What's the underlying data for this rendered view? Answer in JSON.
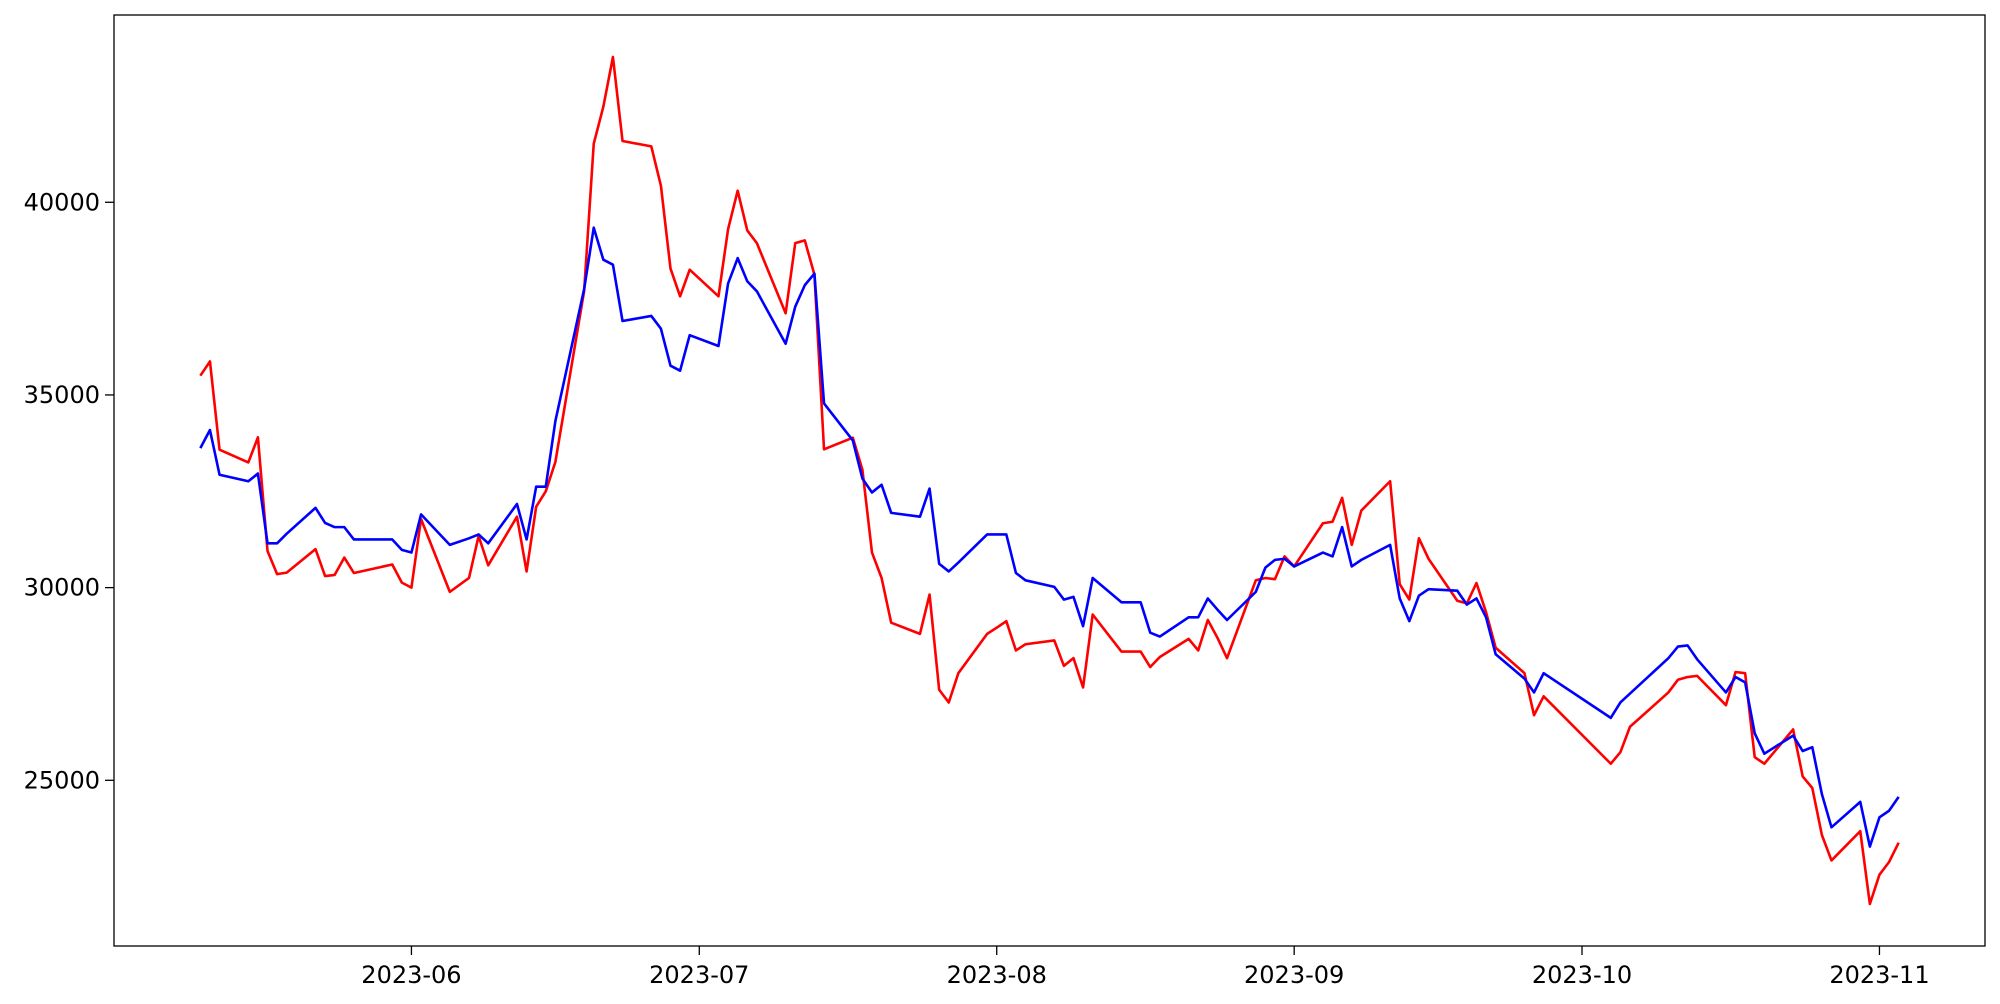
{
  "chart_data": {
    "type": "line",
    "x": [
      "2023-05-10",
      "2023-05-11",
      "2023-05-12",
      "2023-05-15",
      "2023-05-16",
      "2023-05-17",
      "2023-05-18",
      "2023-05-19",
      "2023-05-22",
      "2023-05-23",
      "2023-05-24",
      "2023-05-25",
      "2023-05-26",
      "2023-05-30",
      "2023-05-31",
      "2023-06-01",
      "2023-06-02",
      "2023-06-05",
      "2023-06-07",
      "2023-06-08",
      "2023-06-09",
      "2023-06-12",
      "2023-06-13",
      "2023-06-14",
      "2023-06-15",
      "2023-06-16",
      "2023-06-19",
      "2023-06-20",
      "2023-06-21",
      "2023-06-22",
      "2023-06-23",
      "2023-06-26",
      "2023-06-27",
      "2023-06-28",
      "2023-06-29",
      "2023-06-30",
      "2023-07-03",
      "2023-07-04",
      "2023-07-05",
      "2023-07-06",
      "2023-07-07",
      "2023-07-10",
      "2023-07-11",
      "2023-07-12",
      "2023-07-13",
      "2023-07-14",
      "2023-07-17",
      "2023-07-18",
      "2023-07-19",
      "2023-07-20",
      "2023-07-21",
      "2023-07-24",
      "2023-07-25",
      "2023-07-26",
      "2023-07-27",
      "2023-07-28",
      "2023-07-31",
      "2023-08-01",
      "2023-08-02",
      "2023-08-03",
      "2023-08-04",
      "2023-08-07",
      "2023-08-08",
      "2023-08-09",
      "2023-08-10",
      "2023-08-11",
      "2023-08-14",
      "2023-08-16",
      "2023-08-17",
      "2023-08-18",
      "2023-08-21",
      "2023-08-22",
      "2023-08-23",
      "2023-08-24",
      "2023-08-25",
      "2023-08-28",
      "2023-08-29",
      "2023-08-30",
      "2023-08-31",
      "2023-09-01",
      "2023-09-04",
      "2023-09-05",
      "2023-09-06",
      "2023-09-07",
      "2023-09-08",
      "2023-09-11",
      "2023-09-12",
      "2023-09-13",
      "2023-09-14",
      "2023-09-15",
      "2023-09-18",
      "2023-09-19",
      "2023-09-20",
      "2023-09-21",
      "2023-09-22",
      "2023-09-25",
      "2023-09-26",
      "2023-09-27",
      "2023-10-04",
      "2023-10-05",
      "2023-10-06",
      "2023-10-10",
      "2023-10-11",
      "2023-10-12",
      "2023-10-13",
      "2023-10-16",
      "2023-10-17",
      "2023-10-18",
      "2023-10-19",
      "2023-10-20",
      "2023-10-23",
      "2023-10-24",
      "2023-10-25",
      "2023-10-26",
      "2023-10-27",
      "2023-10-30",
      "2023-10-31",
      "2023-11-01",
      "2023-11-02",
      "2023-11-03"
    ],
    "series": [
      {
        "color": "#ff0000",
        "values": [
          35500,
          35870,
          33580,
          33250,
          33900,
          30950,
          30350,
          30390,
          31000,
          30300,
          30330,
          30780,
          30380,
          30600,
          30130,
          30000,
          31780,
          29890,
          30250,
          31340,
          30580,
          31840,
          30420,
          32100,
          32500,
          33260,
          37700,
          41520,
          42480,
          43770,
          41590,
          41450,
          40430,
          38280,
          37560,
          38250,
          37560,
          39300,
          40300,
          39270,
          38940,
          37120,
          38940,
          39010,
          38120,
          33590,
          33890,
          33060,
          30910,
          30250,
          29090,
          28800,
          29820,
          27350,
          27020,
          27780,
          28800,
          28960,
          29130,
          28370,
          28530,
          28630,
          27970,
          28170,
          27410,
          29300,
          28340,
          28340,
          27940,
          28200,
          28670,
          28370,
          29160,
          28700,
          28170,
          30190,
          30250,
          30220,
          30810,
          30550,
          31670,
          31710,
          32330,
          31110,
          32000,
          32760,
          30090,
          29690,
          31280,
          30750,
          29660,
          29590,
          30120,
          29360,
          28440,
          27780,
          26690,
          27180,
          25430,
          25730,
          26390,
          27280,
          27610,
          27680,
          27710,
          26950,
          27810,
          27780,
          25600,
          25430,
          26320,
          25100,
          24800,
          23580,
          22920,
          23680,
          21790,
          22550,
          22880,
          23380
        ]
      },
      {
        "color": "#0000ff",
        "values": [
          33620,
          34090,
          32930,
          32760,
          32960,
          31150,
          31150,
          31400,
          32070,
          31680,
          31570,
          31570,
          31250,
          31250,
          30980,
          30910,
          31900,
          31110,
          31280,
          31380,
          31150,
          32170,
          31250,
          32620,
          32620,
          34320,
          37750,
          39340,
          38510,
          38380,
          36920,
          37050,
          36720,
          35760,
          35630,
          36550,
          36270,
          37890,
          38550,
          37950,
          37690,
          36330,
          37290,
          37850,
          38150,
          34780,
          33820,
          32830,
          32470,
          32670,
          31940,
          31840,
          32570,
          30620,
          30420,
          30650,
          31380,
          31380,
          31380,
          30380,
          30190,
          30020,
          29690,
          29760,
          29000,
          30250,
          29620,
          29620,
          28830,
          28730,
          29230,
          29230,
          29720,
          29430,
          29160,
          29890,
          30520,
          30720,
          30750,
          30550,
          30910,
          30810,
          31570,
          30550,
          30720,
          31110,
          29720,
          29130,
          29790,
          29960,
          29920,
          29560,
          29720,
          29230,
          28270,
          27640,
          27280,
          27780,
          26620,
          27020,
          27250,
          28170,
          28470,
          28500,
          28140,
          27280,
          27680,
          27540,
          26220,
          25690,
          26160,
          25760,
          25860,
          24640,
          23780,
          24440,
          23280,
          24040,
          24210,
          24570
        ]
      }
    ],
    "xlim": [
      "2023-05-01",
      "2023-11-12"
    ],
    "xticks": [
      "2023-06",
      "2023-07",
      "2023-08",
      "2023-09",
      "2023-10",
      "2023-11"
    ],
    "ylim": [
      20700,
      44860
    ],
    "yticks": [
      25000,
      30000,
      35000,
      40000
    ]
  }
}
